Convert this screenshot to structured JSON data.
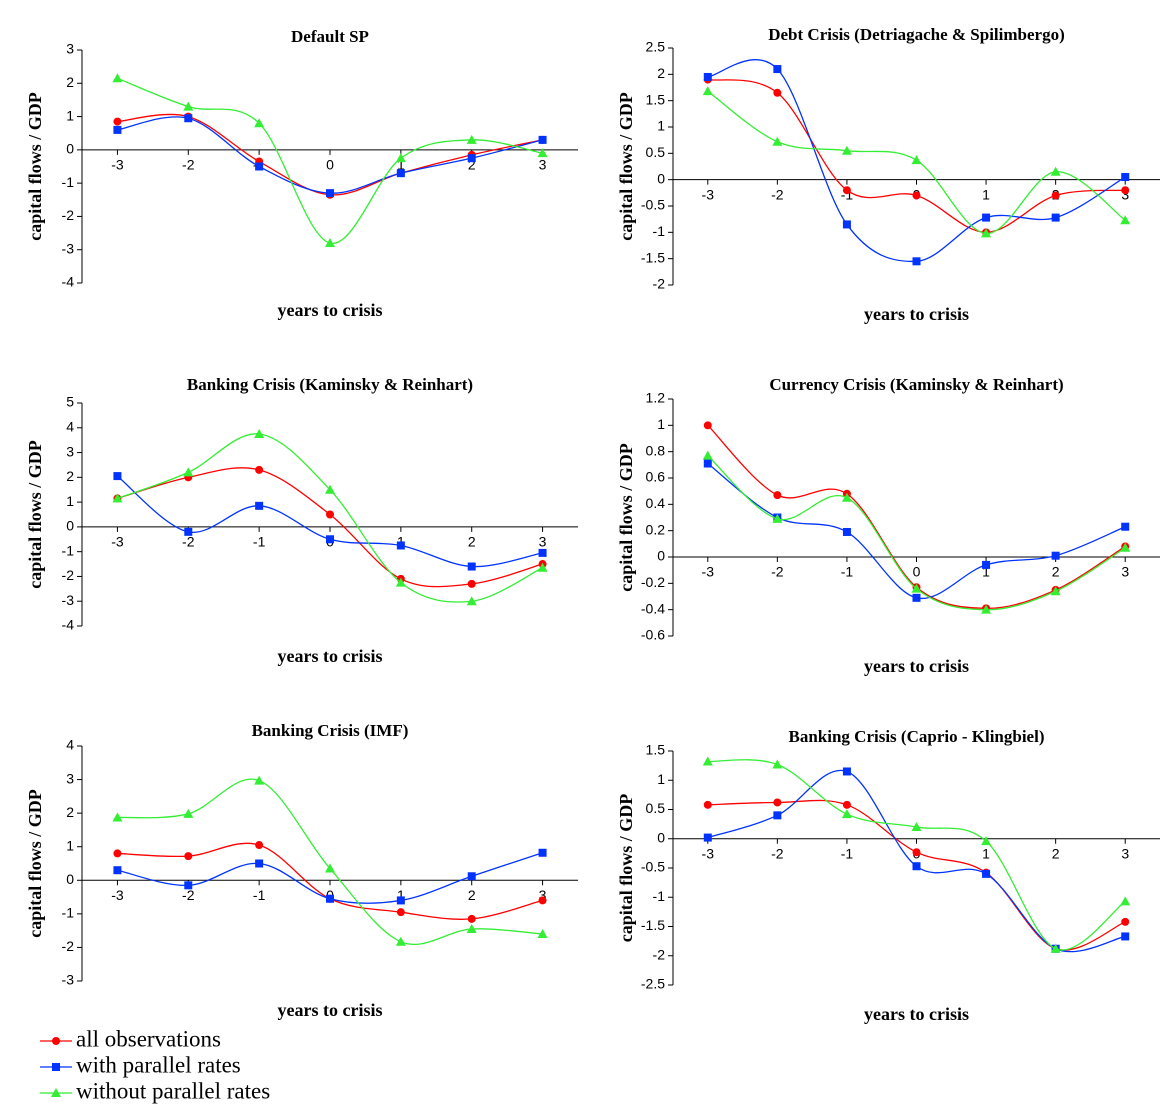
{
  "chart_data": [
    {
      "type": "line",
      "title": "Default SP",
      "xlabel": "years to crisis",
      "ylabel": "capital flows / GDP",
      "categories": [
        "-3",
        "-2",
        "-1",
        "0",
        "1",
        "2",
        "3"
      ],
      "ylim": [
        -4,
        3
      ],
      "yticks": [
        -4,
        -3,
        -2,
        -1,
        0,
        1,
        2,
        3
      ],
      "series": [
        {
          "values": [
            0.85,
            1.0,
            -0.35,
            -1.35,
            -0.7,
            -0.15,
            0.3
          ]
        },
        {
          "values": [
            0.6,
            0.95,
            -0.5,
            -1.3,
            -0.7,
            -0.25,
            0.3
          ]
        },
        {
          "values": [
            2.15,
            1.3,
            0.8,
            -2.8,
            -0.25,
            0.3,
            -0.1
          ]
        }
      ]
    },
    {
      "type": "line",
      "title": "Debt Crisis (Detriagache & Spilimbergo)",
      "xlabel": "years to crisis",
      "ylabel": "capital flows / GDP",
      "categories": [
        "-3",
        "-2",
        "-1",
        "0",
        "1",
        "2",
        "3"
      ],
      "ylim": [
        -2,
        2.5
      ],
      "yticks": [
        -2,
        -1.5,
        -1,
        -0.5,
        0,
        0.5,
        1,
        1.5,
        2,
        2.5
      ],
      "series": [
        {
          "values": [
            1.9,
            1.65,
            -0.2,
            -0.3,
            -1.0,
            -0.3,
            -0.2
          ]
        },
        {
          "values": [
            1.95,
            2.1,
            -0.85,
            -1.55,
            -0.72,
            -0.72,
            0.05
          ]
        },
        {
          "values": [
            1.68,
            0.72,
            0.55,
            0.37,
            -1.02,
            0.15,
            -0.77
          ]
        }
      ]
    },
    {
      "type": "line",
      "title": "Banking Crisis (Kaminsky & Reinhart)",
      "xlabel": "years to crisis",
      "ylabel": "capital flows / GDP",
      "categories": [
        "-3",
        "-2",
        "-1",
        "0",
        "1",
        "2",
        "3"
      ],
      "ylim": [
        -4,
        5
      ],
      "yticks": [
        -4,
        -3,
        -2,
        -1,
        0,
        1,
        2,
        3,
        4,
        5
      ],
      "series": [
        {
          "values": [
            1.15,
            2.0,
            2.3,
            0.5,
            -2.1,
            -2.3,
            -1.5
          ]
        },
        {
          "values": [
            2.05,
            -0.2,
            0.85,
            -0.5,
            -0.75,
            -1.6,
            -1.05
          ]
        },
        {
          "values": [
            1.15,
            2.2,
            3.75,
            1.5,
            -2.25,
            -3.0,
            -1.65
          ]
        }
      ]
    },
    {
      "type": "line",
      "title": "Currency Crisis (Kaminsky & Reinhart)",
      "xlabel": "years to crisis",
      "ylabel": "capital flows / GDP",
      "categories": [
        "-3",
        "-2",
        "-1",
        "0",
        "1",
        "2",
        "3"
      ],
      "ylim": [
        -0.6,
        1.2
      ],
      "yticks": [
        -0.6,
        -0.4,
        -0.2,
        0,
        0.2,
        0.4,
        0.6,
        0.8,
        1,
        1.2
      ],
      "series": [
        {
          "values": [
            1.0,
            0.47,
            0.48,
            -0.23,
            -0.39,
            -0.25,
            0.08
          ]
        },
        {
          "values": [
            0.71,
            0.3,
            0.19,
            -0.31,
            -0.06,
            0.01,
            0.23
          ]
        },
        {
          "values": [
            0.77,
            0.29,
            0.45,
            -0.24,
            -0.4,
            -0.26,
            0.07
          ]
        }
      ]
    },
    {
      "type": "line",
      "title": "Banking Crisis (IMF)",
      "xlabel": "years to crisis",
      "ylabel": "capital flows / GDP",
      "categories": [
        "-3",
        "-2",
        "-1",
        "0",
        "1",
        "2",
        "3"
      ],
      "ylim": [
        -3,
        4
      ],
      "yticks": [
        -3,
        -2,
        -1,
        0,
        1,
        2,
        3,
        4
      ],
      "series": [
        {
          "values": [
            0.8,
            0.72,
            1.05,
            -0.55,
            -0.95,
            -1.15,
            -0.6
          ]
        },
        {
          "values": [
            0.3,
            -0.15,
            0.5,
            -0.55,
            -0.6,
            0.12,
            0.82
          ]
        },
        {
          "values": [
            1.87,
            1.98,
            2.97,
            0.35,
            -1.83,
            -1.45,
            -1.6
          ]
        }
      ]
    },
    {
      "type": "line",
      "title": "Banking Crisis (Caprio - Klingbiel)",
      "xlabel": "years to crisis",
      "ylabel": "capital flows / GDP",
      "categories": [
        "-3",
        "-2",
        "-1",
        "0",
        "1",
        "2",
        "3"
      ],
      "ylim": [
        -2.5,
        1.5
      ],
      "yticks": [
        -2.5,
        -2,
        -1.5,
        -1,
        -0.5,
        0,
        0.5,
        1,
        1.5
      ],
      "series": [
        {
          "values": [
            0.58,
            0.62,
            0.58,
            -0.23,
            -0.58,
            -1.88,
            -1.42
          ]
        },
        {
          "values": [
            0.02,
            0.4,
            1.15,
            -0.47,
            -0.6,
            -1.88,
            -1.67
          ]
        },
        {
          "values": [
            1.32,
            1.27,
            0.42,
            0.2,
            -0.04,
            -1.88,
            -1.07
          ]
        }
      ]
    }
  ],
  "legend": {
    "items": [
      {
        "name": "all observations",
        "color": "#ff0000",
        "marker": "circle"
      },
      {
        "name": "with parallel rates",
        "color": "#0033ff",
        "marker": "square"
      },
      {
        "name": "without parallel rates",
        "color": "#33ee33",
        "marker": "triangle"
      }
    ]
  }
}
